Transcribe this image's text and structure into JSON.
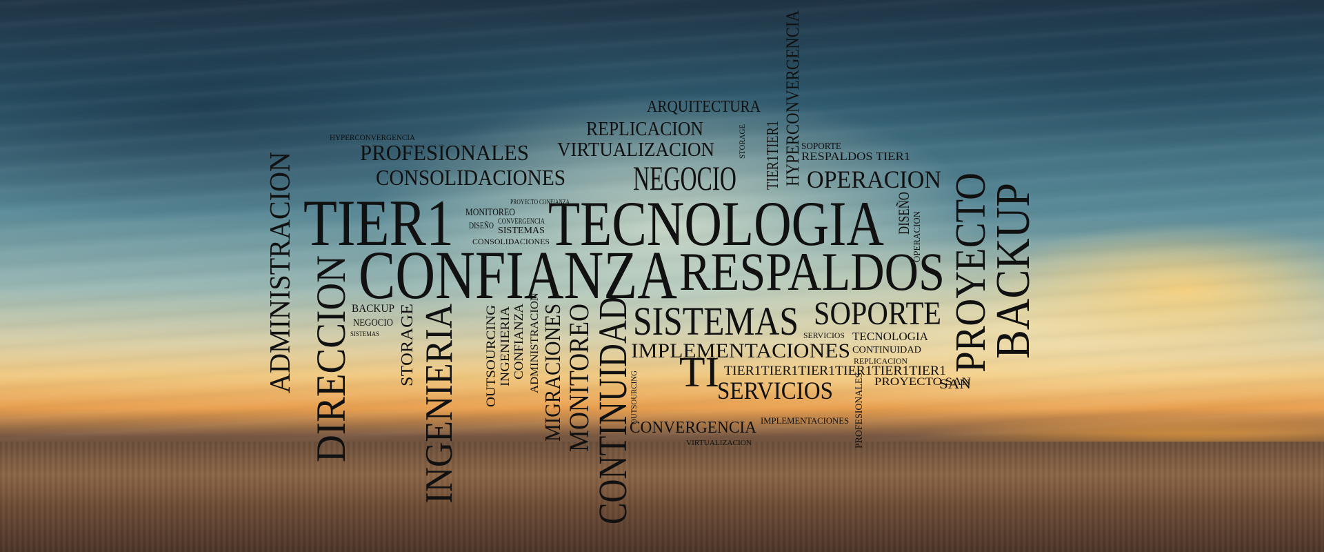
{
  "scene": {
    "description_colors": {
      "sky_top": "#1f3445",
      "horizon": "#f0c982",
      "field": "#6b4a34",
      "text": "#111111"
    }
  },
  "words": {
    "tecnologia": "TECNOLOGIA",
    "confianza": "CONFIANZA",
    "respaldos": "RESPALDOS",
    "tier1_big": "TIER1",
    "direccion": "DIRECCION",
    "administracion": "ADMINISTRACION",
    "ingenieria": "INGENIERIA",
    "continuidad": "CONTINUIDAD",
    "monitoreo": "MONITOREO",
    "migraciones": "MIGRACIONES",
    "proyecto": "PROYECTO",
    "backup": "BACKUP",
    "sistemas": "SISTEMAS",
    "soporte": "SOPORTE",
    "implementaciones": "IMPLEMENTACIONES",
    "servicios": "SERVICIOS",
    "convergencia": "CONVERGENCIA",
    "negocio": "NEGOCIO",
    "operacion": "OPERACION",
    "consolidaciones": "CONSOLIDACIONES",
    "profesionales": "PROFESIONALES",
    "virtualizacion": "VIRTUALIZACION",
    "replicacion": "REPLICACION",
    "arquitectura": "ARQUITECTURA",
    "hyperconvergencia_v": "HYPERCONVERGENCIA",
    "hyperconvergencia_s": "HYPERCONVERGENCIA",
    "tier1_v": "TIER1TIER1",
    "ti": "TI",
    "storage": "STORAGE",
    "outsourcing": "OUTSOURCING",
    "respaldos_tier1": "RESPALDOS TIER1",
    "tier_row": "TIER1TIER1TIER1TIER1TIER1TIER1",
    "tecnologia_small": "TECNOLOGIA",
    "continuidad_small": "CONTINUIDAD",
    "replicacion_small": "REPLICACION",
    "proyecto_san": "PROYECTO SAN",
    "implementaciones_small": "IMPLEMENTACIONES",
    "virtualizacion_small": "VIRTUALIZACION",
    "backup_small": "BACKUP",
    "negocio_small": "NEGOCIO",
    "sistemas_small": "SISTEMAS",
    "monitoreo_small": "MONITOREO",
    "diseno_small": "DISEÑO",
    "convergencia_small": "CONVERGENCIA",
    "sistemas_small2": "SISTEMAS",
    "consolidaciones_small": "CONSOLIDACIONES",
    "proyecto_confianza": "PROYECTO CONFIANZA",
    "servicios_small": "SERVICIOS",
    "soporte_small": "SOPORTE",
    "diseno_v": "DISEÑO",
    "operacion_v": "OPERACION",
    "profesionales_v": "PROFESIONALES",
    "outsourcing_v": "OUTSOURCING",
    "ingenieria_v": "INGENIERIA",
    "confianza_v": "CONFIANZA",
    "administracion_v": "ADMINISTRACION",
    "storage_v": "STORAGE",
    "san": "SAN",
    "backup_v2": "BACKUP"
  }
}
